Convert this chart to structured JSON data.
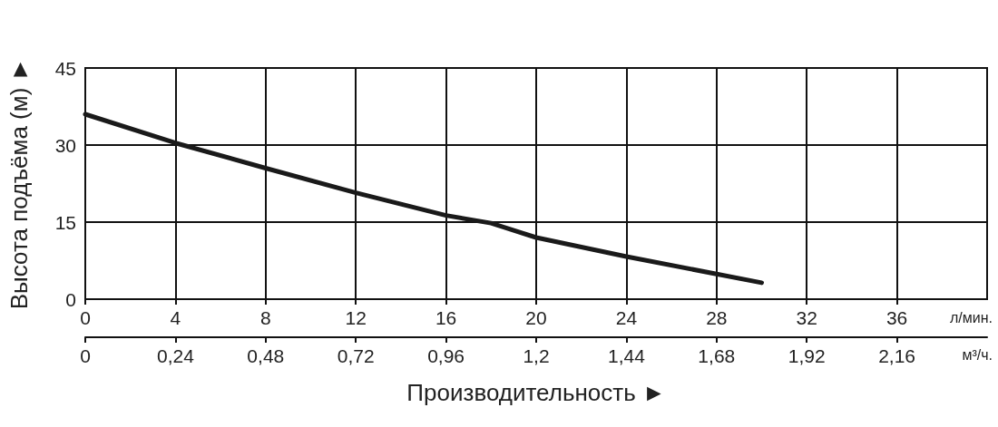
{
  "chart_data": {
    "type": "line",
    "xlabel": "Производительность ►",
    "ylabel": "Высота подъёма (м) ►",
    "xlim": [
      0,
      40
    ],
    "xticks": [
      0,
      4,
      8,
      12,
      16,
      20,
      24,
      28,
      32,
      36
    ],
    "x2lim": [
      0,
      2.4
    ],
    "x2ticks": [
      0,
      {
        "value": 0.24,
        "label": "0,24"
      },
      {
        "value": 0.48,
        "label": "0,48"
      },
      {
        "value": 0.72,
        "label": "0,72"
      },
      {
        "value": 0.96,
        "label": "0,96"
      },
      {
        "value": 1.2,
        "label": "1,2"
      },
      {
        "value": 1.44,
        "label": "1,44"
      },
      {
        "value": 1.68,
        "label": "1,68"
      },
      {
        "value": 1.92,
        "label": "1,92"
      },
      {
        "value": 2.16,
        "label": "2,16"
      }
    ],
    "ylim": [
      0,
      45
    ],
    "yticks": [
      0,
      15,
      30,
      45
    ],
    "x": [
      0,
      4,
      8,
      12,
      16,
      18,
      20,
      24,
      28,
      30
    ],
    "series": [
      {
        "color": "#1a1a1a",
        "values": [
          36,
          30.4,
          25.5,
          20.7,
          16.3,
          14.8,
          12,
          8.3,
          4.9,
          3.2
        ]
      }
    ],
    "annotations": [
      "л/мин.",
      "м³/ч."
    ],
    "grid": true,
    "marker": "none",
    "line_style": "solid"
  }
}
